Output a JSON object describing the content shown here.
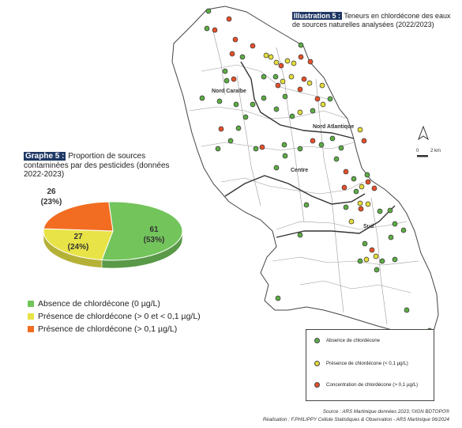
{
  "illustration": {
    "badge": "Illustration 5 :",
    "title": "Teneurs en chlordécone des eaux de sources naturelles analysées (2022/2023)"
  },
  "regions": [
    "Nord Caraïbe",
    "Nord Atlantique",
    "Centre",
    "Sud"
  ],
  "scale": {
    "zero": "0",
    "label": "2 km"
  },
  "graph": {
    "badge": "Graphe 5 :",
    "title": "Proportion de sources contaminées par des pesticides (données 2022-2023)"
  },
  "chart_data": {
    "type": "pie",
    "slices": [
      {
        "label": "Absence de chlordécone (0 µg/L)",
        "value": 61,
        "percent": "(53%)",
        "color": "#72c45b"
      },
      {
        "label": "Présence de chlordécone (> 0 et < 0,1 µg/L)",
        "value": 27,
        "percent": "(24%)",
        "color": "#e8e346"
      },
      {
        "label": "Présence de chlordécone (> 0,1 µg/L)",
        "value": 26,
        "percent": "(23%)",
        "color": "#f26d21"
      }
    ]
  },
  "map_legend": [
    {
      "label": "Absence de chlordécone",
      "color": "#5dac45"
    },
    {
      "label": "Présence de chlordécone (< 0,1 µg/L)",
      "color": "#e4dc3c"
    },
    {
      "label": "Concentration de chlordécone (> 0,1 µg/L)",
      "color": "#e8502a"
    }
  ],
  "source": {
    "line1": "Source : ARS Martinique données 2023, ©IGN BDTOPO®",
    "line2": "Réalisation : F.PHILIPPY Cellule Statistiques & Observation - ARS Martinique 06/2024"
  }
}
